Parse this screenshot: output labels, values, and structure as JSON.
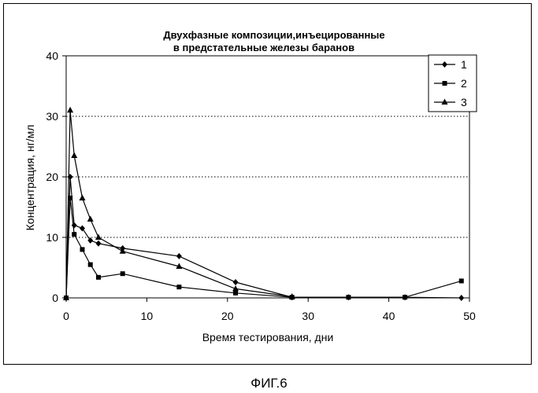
{
  "chart_data": {
    "type": "line",
    "title": "Двухфазные композиции,инъецированные",
    "subtitle": "в предстательные железы баранов",
    "xlabel": "Время тестирования, дни",
    "ylabel": "Концентрация, нг/мл",
    "xlim": [
      0,
      50
    ],
    "ylim": [
      0,
      40
    ],
    "xticks": [
      0,
      10,
      20,
      30,
      40,
      50
    ],
    "yticks": [
      0,
      10,
      20,
      30,
      40
    ],
    "grid": "horizontal-dotted",
    "legend_position": "top-right",
    "series": [
      {
        "name": "1",
        "marker": "diamond",
        "x": [
          0,
          0.5,
          1,
          2,
          3,
          4,
          7,
          14,
          21,
          28,
          35,
          42,
          49
        ],
        "values": [
          0,
          20,
          12,
          11.5,
          9.5,
          9,
          8.2,
          6.9,
          2.6,
          0.1,
          0.1,
          0.1,
          0
        ]
      },
      {
        "name": "2",
        "marker": "square",
        "x": [
          0,
          0.5,
          1,
          2,
          3,
          4,
          7,
          14,
          21,
          28,
          35,
          42,
          49
        ],
        "values": [
          0,
          16.5,
          10.5,
          8,
          5.5,
          3.4,
          4,
          1.8,
          0.8,
          0.1,
          0.1,
          0.1,
          2.8
        ]
      },
      {
        "name": "3",
        "marker": "triangle",
        "x": [
          0,
          0.5,
          1,
          2,
          3,
          4,
          7,
          14,
          21,
          28
        ],
        "values": [
          0,
          31,
          23.5,
          16.5,
          13,
          10,
          7.7,
          5.2,
          1.5,
          0.2
        ]
      }
    ]
  },
  "caption": "ФИГ.6"
}
